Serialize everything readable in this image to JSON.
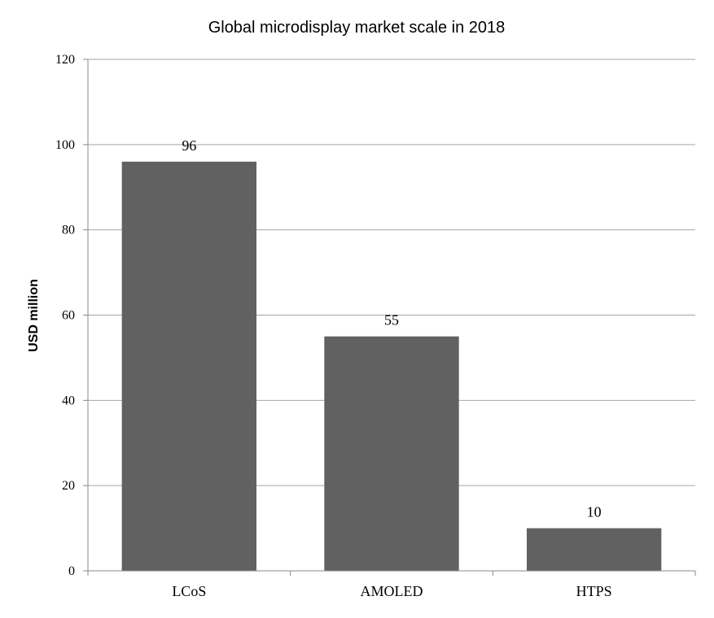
{
  "chart_data": {
    "type": "bar",
    "title": "Global microdisplay market scale in 2018",
    "xlabel": "",
    "ylabel": "USD million",
    "categories": [
      "LCoS",
      "AMOLED",
      "HTPS"
    ],
    "values": [
      96,
      55,
      10
    ],
    "data_labels": [
      "96",
      "55",
      "10"
    ],
    "ylim": [
      0,
      120
    ],
    "yticks": [
      0,
      20,
      40,
      60,
      80,
      100,
      120
    ],
    "ytick_labels": [
      "0",
      "20",
      "40",
      "60",
      "80",
      "100",
      "120"
    ],
    "grid": true,
    "legend": "none",
    "bar_color": "#616161",
    "grid_color": "#a6a6a6"
  }
}
